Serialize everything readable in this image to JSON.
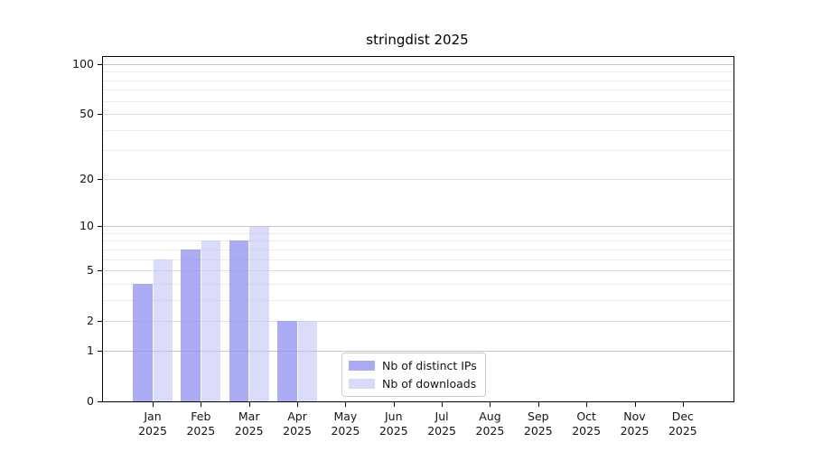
{
  "title": "stringdist 2025",
  "chart_data": {
    "type": "bar",
    "title": "stringdist 2025",
    "categories": [
      "Jan 2025",
      "Feb 2025",
      "Mar 2025",
      "Apr 2025",
      "May 2025",
      "Jun 2025",
      "Jul 2025",
      "Aug 2025",
      "Sep 2025",
      "Oct 2025",
      "Nov 2025",
      "Dec 2025"
    ],
    "series": [
      {
        "name": "Nb of distinct IPs",
        "values": [
          4,
          7,
          8,
          2,
          0,
          0,
          0,
          0,
          0,
          0,
          0,
          0
        ],
        "fill": "rgba(140,140,243,0.72)",
        "swatch": "#aaaaf3"
      },
      {
        "name": "Nb of downloads",
        "values": [
          6,
          8,
          10,
          2,
          0,
          0,
          0,
          0,
          0,
          0,
          0,
          0
        ],
        "fill": "rgba(190,190,246,0.55)",
        "swatch": "#d9d9f9"
      }
    ],
    "xlabel": "",
    "ylabel": "",
    "yscale": "log1p",
    "ylim": [
      0,
      110
    ],
    "yticks": [
      0,
      1,
      2,
      5,
      10,
      20,
      50,
      100
    ],
    "minor_gridlines": [
      3,
      4,
      6,
      7,
      8,
      9,
      30,
      40,
      60,
      70,
      80,
      90
    ],
    "grid": true,
    "legend_position": "lower center",
    "colors": {
      "grid_decade": "#c6c6c6",
      "grid_labeled": "#dedede",
      "grid_minor": "#ececec",
      "axis": "#000000",
      "tick_text": "#141414"
    }
  }
}
